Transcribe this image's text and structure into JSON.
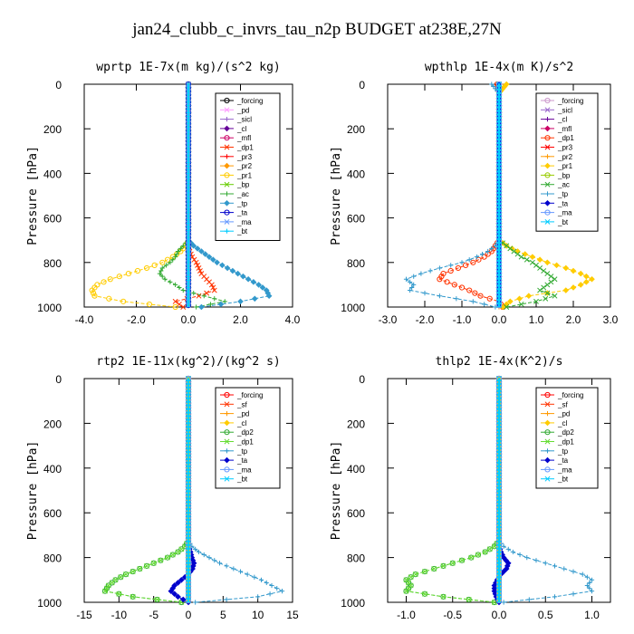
{
  "title": "jan24_clubb_c_invrs_tau_n2p  BUDGET at238E,27N",
  "chart_data": [
    {
      "type": "line",
      "title": "wprtp  1E-7x(m kg)/(s^2 kg)",
      "ylabel": "Pressure [hPa]",
      "xlim": [
        -4,
        4
      ],
      "ylim": [
        1000,
        0
      ],
      "xticks": [
        "-4.0",
        "-2.0",
        "0.0",
        "2.0",
        "4.0"
      ],
      "xtick_values": [
        -4,
        -2,
        0,
        2,
        4
      ],
      "yticks": [
        "0",
        "200",
        "400",
        "600",
        "800",
        "1000"
      ],
      "ytick_values": [
        0,
        200,
        400,
        600,
        800,
        1000
      ],
      "legend_position": "top-right",
      "y": [
        0,
        700,
        725,
        750,
        775,
        800,
        825,
        850,
        875,
        900,
        925,
        950,
        975,
        1000
      ],
      "series": [
        {
          "name": "_forcing",
          "color": "#000000",
          "x": [
            0,
            0,
            0,
            0,
            0,
            0,
            0,
            0,
            0,
            0,
            0,
            0,
            0,
            0
          ]
        },
        {
          "name": "_pd",
          "color": "#ff99ff",
          "x": [
            0,
            0,
            0,
            0,
            0,
            0,
            0,
            0,
            0,
            0,
            0,
            0,
            0,
            0
          ]
        },
        {
          "name": "_sicl",
          "color": "#9966cc",
          "x": [
            0,
            0,
            0,
            0,
            0,
            0,
            0,
            0,
            0,
            0,
            0,
            0,
            0,
            0
          ]
        },
        {
          "name": "_cl",
          "color": "#660099",
          "x": [
            0,
            0,
            0,
            0,
            0,
            0,
            0,
            0,
            0,
            0,
            0,
            0,
            0,
            0
          ]
        },
        {
          "name": "_mfl",
          "color": "#cc0066",
          "x": [
            0,
            0,
            0,
            0,
            0,
            0,
            0,
            0,
            0,
            0,
            0,
            0,
            0,
            0
          ]
        },
        {
          "name": "_dp1",
          "color": "#ff3300",
          "x": [
            0,
            0,
            0,
            0.05,
            0.15,
            0.3,
            0.4,
            0.5,
            0.7,
            0.9,
            1.0,
            0.4,
            -0.5,
            -0.2
          ]
        },
        {
          "name": "_pr3",
          "color": "#ff0000",
          "x": [
            0,
            0,
            0,
            0,
            0,
            0,
            0,
            0,
            0,
            0,
            0,
            0,
            0,
            0
          ]
        },
        {
          "name": "_pr2",
          "color": "#ff9900",
          "x": [
            0,
            0,
            0,
            0,
            0,
            0,
            0,
            0,
            0,
            0,
            0,
            0,
            0,
            0
          ]
        },
        {
          "name": "_pr1",
          "color": "#ffcc00",
          "x": [
            0,
            0,
            -0.1,
            -0.3,
            -0.6,
            -1.0,
            -1.6,
            -2.3,
            -3.0,
            -3.5,
            -3.7,
            -3.6,
            -2.5,
            -0.5
          ]
        },
        {
          "name": "_bp",
          "color": "#66cc00",
          "x": [
            0,
            0,
            0,
            0,
            0,
            0,
            0,
            0,
            0,
            0,
            0,
            0,
            0,
            0
          ]
        },
        {
          "name": "_ac",
          "color": "#33aa33",
          "x": [
            0,
            0,
            -0.2,
            -0.4,
            -0.5,
            -0.7,
            -1.0,
            -1.1,
            -0.9,
            -0.5,
            -0.2,
            0.6,
            1.4,
            0.3
          ]
        },
        {
          "name": "_tp",
          "color": "#3399cc",
          "x": [
            0,
            0,
            0.2,
            0.5,
            0.8,
            1.1,
            1.5,
            1.9,
            2.3,
            2.7,
            3.0,
            3.1,
            2.0,
            0.5
          ]
        },
        {
          "name": "_ta",
          "color": "#0000cc",
          "x": [
            0,
            0,
            0,
            0,
            0,
            0,
            0,
            0,
            0,
            0,
            0,
            0,
            0,
            0
          ]
        },
        {
          "name": "_ma",
          "color": "#6699ff",
          "x": [
            0,
            0,
            0,
            0,
            0,
            0,
            0,
            0,
            0,
            0,
            0,
            0,
            0,
            0
          ]
        },
        {
          "name": "_bt",
          "color": "#00ccff",
          "x": [
            0,
            0,
            0,
            0,
            0,
            0,
            0,
            0,
            0,
            0,
            0,
            0,
            0,
            0
          ]
        }
      ]
    },
    {
      "type": "line",
      "title": "wpthlp  1E-4x(m K)/s^2",
      "ylabel": "Pressure [hPa]",
      "xlim": [
        -3,
        3
      ],
      "ylim": [
        1000,
        0
      ],
      "xticks": [
        "-3.0",
        "-2.0",
        "-1.0",
        "0.0",
        "1.0",
        "2.0",
        "3.0"
      ],
      "xtick_values": [
        -3,
        -2,
        -1,
        0,
        1,
        2,
        3
      ],
      "yticks": [
        "0",
        "200",
        "400",
        "600",
        "800",
        "1000"
      ],
      "ytick_values": [
        0,
        200,
        400,
        600,
        800,
        1000
      ],
      "legend_position": "top-right",
      "y": [
        0,
        20,
        40,
        700,
        725,
        750,
        775,
        800,
        825,
        850,
        875,
        900,
        925,
        950,
        975,
        1000
      ],
      "series": [
        {
          "name": "_forcing",
          "color": "#cc99cc",
          "x": [
            0,
            0,
            0,
            0,
            0,
            0,
            0,
            0,
            0,
            0,
            0,
            0,
            0,
            0,
            0,
            0
          ]
        },
        {
          "name": "_sicl",
          "color": "#9966cc",
          "x": [
            0,
            0,
            0,
            0,
            0,
            0,
            0,
            0,
            0,
            0,
            0,
            0,
            0,
            0,
            0,
            0
          ]
        },
        {
          "name": "_cl",
          "color": "#660099",
          "x": [
            0,
            0,
            0,
            0,
            0,
            0,
            0,
            0,
            0,
            0,
            0,
            0,
            0,
            0,
            0,
            0
          ]
        },
        {
          "name": "_mfl",
          "color": "#cc0066",
          "x": [
            0,
            0,
            0,
            0,
            0,
            0,
            0,
            0,
            0,
            0,
            0,
            0,
            0,
            0,
            0,
            0
          ]
        },
        {
          "name": "_dp1",
          "color": "#ff3300",
          "x": [
            -0.05,
            -0.02,
            0,
            0,
            -0.1,
            -0.2,
            -0.4,
            -0.7,
            -1.1,
            -1.5,
            -1.6,
            -1.2,
            -0.8,
            -0.5,
            0,
            0.1
          ]
        },
        {
          "name": "_pr3",
          "color": "#ff0000",
          "x": [
            0,
            0,
            0,
            0,
            0,
            0,
            0,
            0,
            0,
            0,
            0,
            0,
            0,
            0,
            0,
            0
          ]
        },
        {
          "name": "_pr2",
          "color": "#ff9900",
          "x": [
            0.05,
            0.02,
            0,
            0,
            0,
            0,
            0,
            0,
            0,
            0,
            0,
            0,
            0,
            0,
            0,
            0
          ]
        },
        {
          "name": "_pr1",
          "color": "#ffcc00",
          "x": [
            0.2,
            0.1,
            0,
            0,
            0.2,
            0.5,
            0.9,
            1.3,
            1.8,
            2.2,
            2.5,
            2.2,
            1.8,
            0.8,
            0.3,
            0.1
          ]
        },
        {
          "name": "_bp",
          "color": "#99cc00",
          "x": [
            0,
            0,
            0,
            0,
            0,
            0,
            0,
            0,
            0,
            0,
            0,
            0,
            0,
            0,
            0,
            0
          ]
        },
        {
          "name": "_ac",
          "color": "#33aa33",
          "x": [
            0,
            0,
            0,
            0,
            0.2,
            0.4,
            0.6,
            0.9,
            1.1,
            1.3,
            1.5,
            1.3,
            1.1,
            1.5,
            1.0,
            0.2
          ]
        },
        {
          "name": "_tp",
          "color": "#3399cc",
          "x": [
            -0.2,
            -0.1,
            0,
            0,
            -0.1,
            -0.3,
            -0.6,
            -1.0,
            -1.6,
            -2.1,
            -2.5,
            -2.3,
            -2.4,
            -1.6,
            -0.7,
            -0.1
          ]
        },
        {
          "name": "_ta",
          "color": "#0000cc",
          "x": [
            0,
            0,
            0,
            0,
            0,
            0,
            0,
            0,
            0,
            0,
            0,
            0,
            0,
            0,
            0,
            0
          ]
        },
        {
          "name": "_ma",
          "color": "#6699ff",
          "x": [
            0,
            0,
            0,
            0,
            0,
            0,
            0,
            0,
            0,
            0,
            0,
            0,
            0,
            0,
            0,
            0
          ]
        },
        {
          "name": "_bt",
          "color": "#00ccff",
          "x": [
            0,
            0,
            0,
            0,
            0,
            0,
            0,
            0,
            0,
            0,
            0,
            0,
            0,
            0,
            0,
            0
          ]
        }
      ]
    },
    {
      "type": "line",
      "title": "rtp2  1E-11x(kg^2)/(kg^2 s)",
      "ylabel": "Pressure [hPa]",
      "xlim": [
        -15,
        15
      ],
      "ylim": [
        1000,
        0
      ],
      "xticks": [
        "-15",
        "-10",
        "-5",
        "0",
        "5",
        "10",
        "15"
      ],
      "xtick_values": [
        -15,
        -10,
        -5,
        0,
        5,
        10,
        15
      ],
      "yticks": [
        "0",
        "200",
        "400",
        "600",
        "800",
        "1000"
      ],
      "ytick_values": [
        0,
        200,
        400,
        600,
        800,
        1000
      ],
      "legend_position": "top-right",
      "y": [
        0,
        725,
        750,
        775,
        800,
        825,
        850,
        875,
        900,
        925,
        950,
        975,
        1000
      ],
      "series": [
        {
          "name": "_forcing",
          "color": "#ff0000",
          "x": [
            0,
            0,
            0,
            0,
            0,
            0,
            0,
            0,
            0,
            0,
            0,
            0,
            0
          ]
        },
        {
          "name": "_sf",
          "color": "#ff3300",
          "x": [
            0,
            0,
            0,
            0,
            0,
            0,
            0,
            0,
            0,
            0,
            0,
            0,
            0
          ]
        },
        {
          "name": "_pd",
          "color": "#ff9900",
          "x": [
            0,
            0,
            0,
            0,
            0,
            0,
            0,
            0,
            0,
            0,
            0,
            0,
            0
          ]
        },
        {
          "name": "_cl",
          "color": "#ffcc00",
          "x": [
            0,
            0,
            0,
            0,
            0,
            0,
            0,
            0,
            0,
            0,
            0,
            0,
            0
          ]
        },
        {
          "name": "_dp2",
          "color": "#33aa33",
          "x": [
            0,
            0,
            -0.5,
            -1.5,
            -3,
            -5,
            -7,
            -9,
            -10.5,
            -11.5,
            -12,
            -8,
            -1
          ]
        },
        {
          "name": "_dp1",
          "color": "#66dd33",
          "x": [
            0,
            0,
            -0.5,
            -1.5,
            -3,
            -5,
            -7,
            -9,
            -10.5,
            -11.5,
            -12,
            -8,
            -1
          ]
        },
        {
          "name": "_tp",
          "color": "#3399cc",
          "x": [
            0,
            0,
            0.5,
            1.5,
            3,
            4.5,
            6.5,
            8.5,
            10.5,
            12,
            13.5,
            10,
            1
          ]
        },
        {
          "name": "_ta",
          "color": "#0000cc",
          "x": [
            0,
            0,
            0,
            0.3,
            0.5,
            0.8,
            0.6,
            0,
            -1,
            -2,
            -2.5,
            -1.5,
            0
          ]
        },
        {
          "name": "_ma",
          "color": "#6699ff",
          "x": [
            0,
            0,
            0,
            0,
            0,
            0,
            0,
            0,
            0,
            0,
            0,
            0,
            0
          ]
        },
        {
          "name": "_bt",
          "color": "#00ccff",
          "x": [
            0,
            0,
            0,
            0,
            0,
            0,
            0,
            0,
            0,
            0,
            0,
            0,
            0
          ]
        }
      ]
    },
    {
      "type": "line",
      "title": "thlp2  1E-4x(K^2)/s",
      "ylabel": "Pressure [hPa]",
      "xlim": [
        -1.2,
        1.2
      ],
      "ylim": [
        1000,
        0
      ],
      "xticks": [
        "-1.0",
        "-0.5",
        "0.0",
        "0.5",
        "1.0"
      ],
      "xtick_values": [
        -1,
        -0.5,
        0,
        0.5,
        1
      ],
      "yticks": [
        "0",
        "200",
        "400",
        "600",
        "800",
        "1000"
      ],
      "ytick_values": [
        0,
        200,
        400,
        600,
        800,
        1000
      ],
      "legend_position": "top-right",
      "y": [
        0,
        725,
        750,
        775,
        800,
        825,
        850,
        875,
        900,
        925,
        950,
        975,
        1000
      ],
      "series": [
        {
          "name": "_forcing",
          "color": "#ff0000",
          "x": [
            0,
            0,
            0,
            0,
            0,
            0,
            0,
            0,
            0,
            0,
            0,
            0,
            0
          ]
        },
        {
          "name": "_sf",
          "color": "#ff3300",
          "x": [
            0,
            0,
            0,
            0,
            0,
            0,
            0,
            0,
            0,
            0,
            0,
            0,
            0
          ]
        },
        {
          "name": "_pd",
          "color": "#ff9900",
          "x": [
            0,
            0,
            0,
            0,
            0,
            0,
            0,
            0,
            0,
            0,
            0,
            0,
            0
          ]
        },
        {
          "name": "_cl",
          "color": "#ffcc00",
          "x": [
            0,
            0,
            0,
            0,
            0,
            0,
            0,
            0,
            0,
            0,
            0,
            0,
            0
          ]
        },
        {
          "name": "_dp2",
          "color": "#33aa33",
          "x": [
            0,
            0,
            -0.05,
            -0.15,
            -0.3,
            -0.5,
            -0.7,
            -0.9,
            -1.0,
            -0.95,
            -1.0,
            -0.6,
            -0.05
          ]
        },
        {
          "name": "_dp1",
          "color": "#66dd33",
          "x": [
            0,
            0,
            -0.05,
            -0.15,
            -0.3,
            -0.5,
            -0.7,
            -0.9,
            -1.0,
            -0.95,
            -1.0,
            -0.6,
            -0.05
          ]
        },
        {
          "name": "_tp",
          "color": "#3399cc",
          "x": [
            0,
            0,
            0.05,
            0.15,
            0.3,
            0.5,
            0.7,
            0.9,
            1.0,
            0.95,
            1.0,
            0.6,
            0.05
          ]
        },
        {
          "name": "_ta",
          "color": "#0000cc",
          "x": [
            0,
            0,
            0,
            0.02,
            0.05,
            0.1,
            0.08,
            0.02,
            -0.02,
            -0.05,
            -0.05,
            -0.03,
            0
          ]
        },
        {
          "name": "_ma",
          "color": "#6699ff",
          "x": [
            0,
            0,
            0,
            0,
            0,
            0,
            0,
            0,
            0,
            0,
            0,
            0,
            0
          ]
        },
        {
          "name": "_bt",
          "color": "#00ccff",
          "x": [
            0,
            0,
            0,
            0,
            0,
            0,
            0,
            0,
            0,
            0,
            0,
            0,
            0
          ]
        }
      ]
    }
  ]
}
